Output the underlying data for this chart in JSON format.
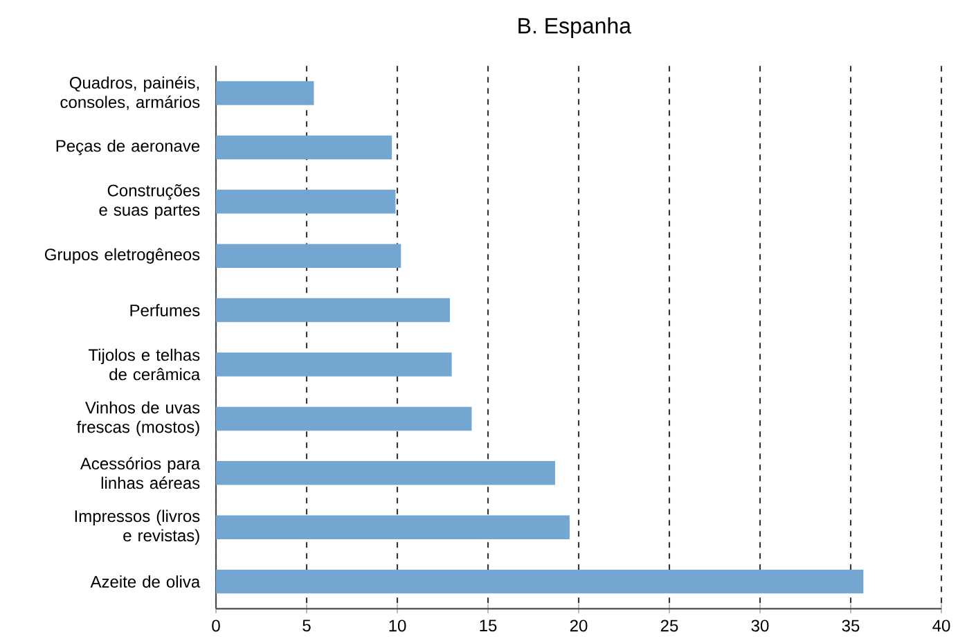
{
  "chart_data": {
    "type": "bar",
    "orientation": "horizontal",
    "title": "B. Espanha",
    "categories": [
      "Quadros, painéis, consoles, armários",
      "Peças de aeronave",
      "Construções e suas partes",
      "Grupos eletrogêneos",
      "Perfumes",
      "Tijolos e telhas de cerâmica",
      "Vinhos de uvas frescas (mostos)",
      "Acessórios para linhas aéreas",
      "Impressos (livros e revistas)",
      "Azeite de oliva"
    ],
    "values": [
      5.4,
      9.7,
      9.9,
      10.2,
      12.9,
      13.0,
      14.1,
      18.7,
      19.5,
      35.7
    ],
    "color": "#74a6d2",
    "xlim": [
      0,
      40
    ],
    "xticks": [
      0,
      5,
      10,
      15,
      20,
      25,
      30,
      35,
      40
    ],
    "grid": "x"
  }
}
